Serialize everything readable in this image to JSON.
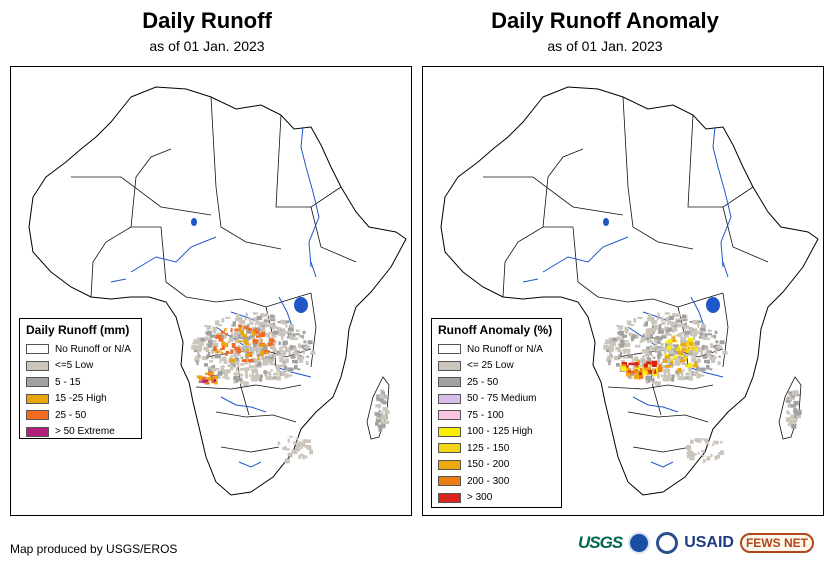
{
  "left_panel": {
    "title": "Daily Runoff",
    "subtitle": "as of 01 Jan. 2023",
    "legend": {
      "title": "Daily Runoff (mm)",
      "items": [
        {
          "label": "No Runoff or N/A",
          "color": "#ffffff"
        },
        {
          "label": "<=5 Low",
          "color": "#cbc5bb"
        },
        {
          "label": "5 - 15",
          "color": "#a1a1a1"
        },
        {
          "label": "15 -25 High",
          "color": "#e8a50e"
        },
        {
          "label": "25 - 50",
          "color": "#f26b21"
        },
        {
          "label": "> 50 Extreme",
          "color": "#b51f7c"
        }
      ]
    }
  },
  "right_panel": {
    "title": "Daily Runoff Anomaly",
    "subtitle": "as of 01 Jan. 2023",
    "legend": {
      "title": "Runoff Anomaly (%)",
      "items": [
        {
          "label": "No Runoff or N/A",
          "color": "#ffffff"
        },
        {
          "label": "<= 25 Low",
          "color": "#cbc5bb"
        },
        {
          "label": "25 - 50",
          "color": "#a1a1a1"
        },
        {
          "label": "50 - 75 Medium",
          "color": "#d7bde9"
        },
        {
          "label": "75 - 100",
          "color": "#f8c5e2"
        },
        {
          "label": "100 - 125 High",
          "color": "#f9ee05"
        },
        {
          "label": "125 - 150",
          "color": "#f5d215"
        },
        {
          "label": "150 - 200",
          "color": "#f0a80f"
        },
        {
          "label": "200 - 300",
          "color": "#eb7d12"
        },
        {
          "label": "> 300",
          "color": "#d9241c"
        }
      ]
    }
  },
  "credit": "Map produced by USGS/EROS",
  "logos": {
    "usgs": "USGS",
    "usaid": "USAID",
    "fews": "FEWS NET",
    "noaa": "NOAA seal"
  },
  "colors": {
    "river": "#1f56c8",
    "border": "#000000",
    "low_gray": "#c9c3ba",
    "mid_gray": "#9e9e9e"
  }
}
